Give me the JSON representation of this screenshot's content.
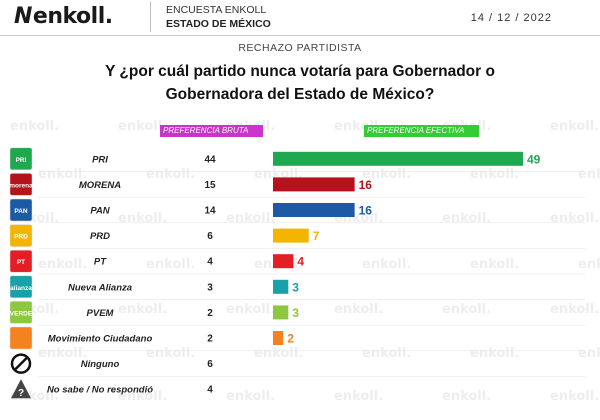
{
  "header": {
    "logo_text": "enkoll.",
    "survey_label": "ENCUESTA ENKOLL",
    "state_label": "ESTADO DE MÉXICO",
    "date": "14 / 12 / 2022"
  },
  "subtitle": "RECHAZO PARTIDISTA",
  "question_line1": "Y ¿por cuál partido nunca votaría para Gobernador o",
  "question_line2": "Gobernadora del Estado de México?",
  "column_labels": {
    "bruta": "PREFERENCIA BRUTA",
    "efectiva": "PREFERENCIA EFECTIVA"
  },
  "watermark": "enkoll.",
  "chart_data": {
    "type": "bar",
    "categories": [
      "PRI",
      "MORENA",
      "PAN",
      "PRD",
      "PT",
      "Nueva Alianza",
      "PVEM",
      "Movimiento Ciudadano",
      "Ninguno",
      "No sabe / No respondió"
    ],
    "series": [
      {
        "name": "PREFERENCIA BRUTA",
        "values": [
          44,
          15,
          14,
          6,
          4,
          3,
          2,
          2,
          6,
          4
        ]
      },
      {
        "name": "PREFERENCIA EFECTIVA",
        "values": [
          49,
          16,
          16,
          7,
          4,
          3,
          3,
          2,
          null,
          null
        ]
      }
    ],
    "colors": [
      "#1fa84f",
      "#b5121b",
      "#1c5aa6",
      "#f2b600",
      "#e31e24",
      "#1aa0a8",
      "#8dc63f",
      "#f58220",
      null,
      null
    ],
    "logo_icons": [
      "pri-logo-icon",
      "morena-logo-icon",
      "pan-logo-icon",
      "prd-logo-icon",
      "pt-logo-icon",
      "nueva-alianza-logo-icon",
      "pvem-logo-icon",
      "movimiento-ciudadano-logo-icon",
      "ninguno-icon",
      "no-sabe-icon"
    ],
    "logo_texts": [
      "PRI",
      "morena",
      "PAN",
      "PRD",
      "PT",
      "alianza",
      "VERDE",
      "",
      "",
      "?"
    ],
    "xlim": [
      0,
      49
    ]
  }
}
